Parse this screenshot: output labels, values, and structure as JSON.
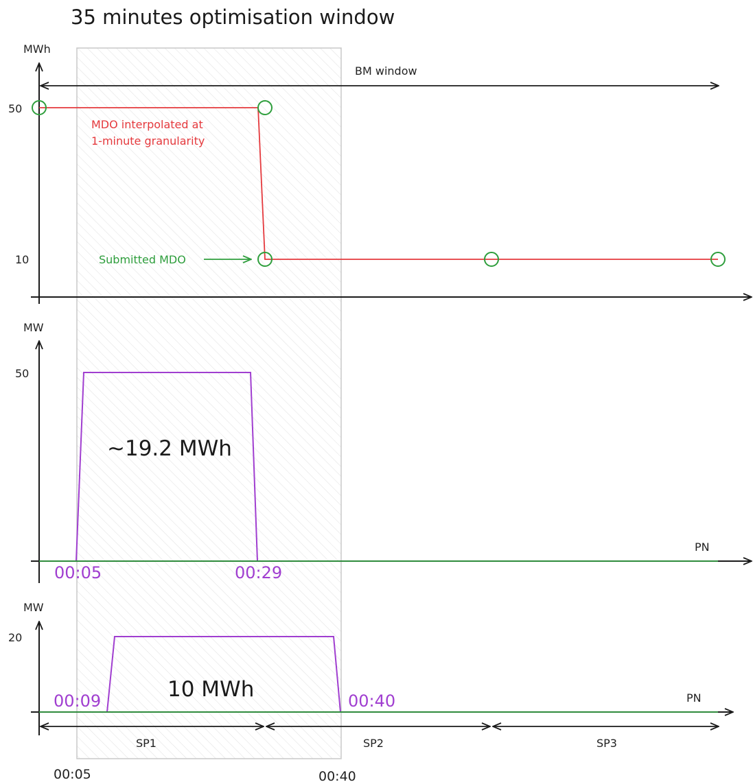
{
  "title": "35 minutes optimisation window",
  "colors": {
    "axis": "#1a1a1a",
    "mdo_line": "#e5393d",
    "submitted": "#2e9e3c",
    "pn": "#2e8b3c",
    "purple": "#a03ed0",
    "window_border": "#c8c8c8",
    "hatch": "#e6e6e6"
  },
  "top_panel": {
    "y_unit": "MWh",
    "y_ticks": [
      "50",
      "10"
    ],
    "bm_window_label": "BM window",
    "mdo_note_line1": "MDO interpolated at",
    "mdo_note_line2": "1-minute granularity",
    "submitted_label": "Submitted MDO"
  },
  "middle_panel": {
    "y_unit": "MW",
    "y_tick": "50",
    "energy_label": "~19.2 MWh",
    "start_label": "00:05",
    "end_label": "00:29",
    "pn_label": "PN"
  },
  "bottom_panel": {
    "y_unit": "MW",
    "y_tick": "20",
    "energy_label": "10 MWh",
    "start_label": "00:09",
    "end_label": "00:40",
    "pn_label": "PN",
    "settlement_periods": [
      "SP1",
      "SP2",
      "SP3"
    ],
    "window_start": "00:05",
    "window_end": "00:40"
  }
}
